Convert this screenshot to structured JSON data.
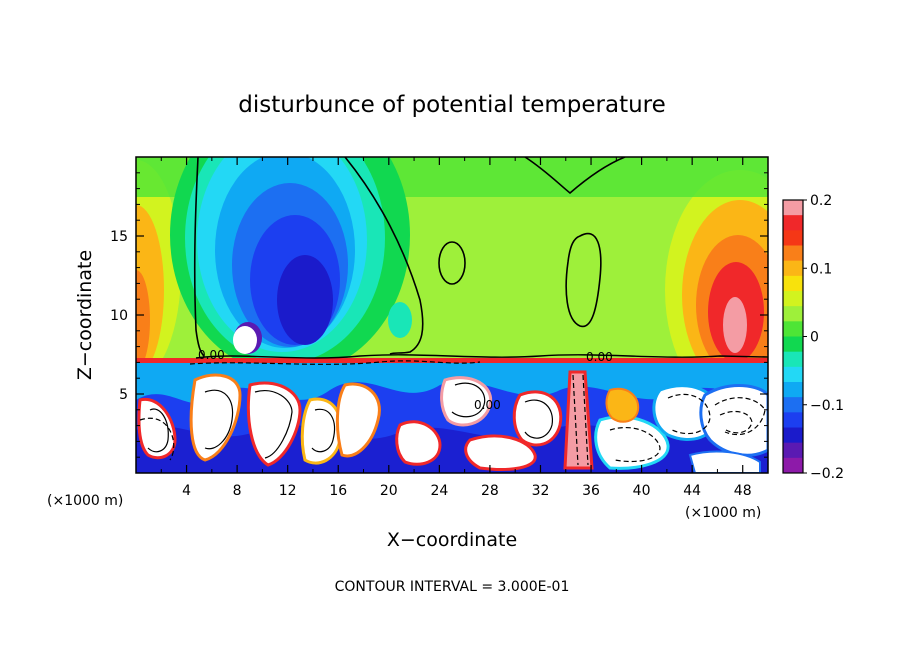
{
  "chart_data": {
    "type": "heatmap",
    "title": "disturbunce of potential temperature",
    "xlabel": "X−coordinate",
    "ylabel": "Z−coordinate",
    "x_unit_left": "(×1000 m)",
    "x_unit_right": "(×1000 m)",
    "x_ticks": [
      "4",
      "8",
      "12",
      "16",
      "20",
      "24",
      "28",
      "32",
      "36",
      "40",
      "44",
      "48"
    ],
    "y_ticks": [
      "5",
      "10",
      "15"
    ],
    "xlim": [
      0,
      50
    ],
    "ylim": [
      0,
      20
    ],
    "colorbar": {
      "ticks": [
        "0.2",
        "0.1",
        "0",
        "−0.1",
        "−0.2"
      ],
      "range": [
        -0.2,
        0.2
      ],
      "colors": [
        "#f49ca4",
        "#f0282a",
        "#f53716",
        "#f97f19",
        "#fbb616",
        "#f8e20c",
        "#d2f31f",
        "#9ef03a",
        "#4ee536",
        "#11d850",
        "#19e6b7",
        "#23d8f5",
        "#0fa9f3",
        "#1c6ff2",
        "#1c3ff0",
        "#1b1bcb",
        "#5a1ab2",
        "#8d1aa9"
      ]
    },
    "contour_labels": [
      "0.00",
      "0.00",
      "0.00"
    ],
    "contour_interval_text": "CONTOUR INTERVAL = 3.000E-01"
  }
}
